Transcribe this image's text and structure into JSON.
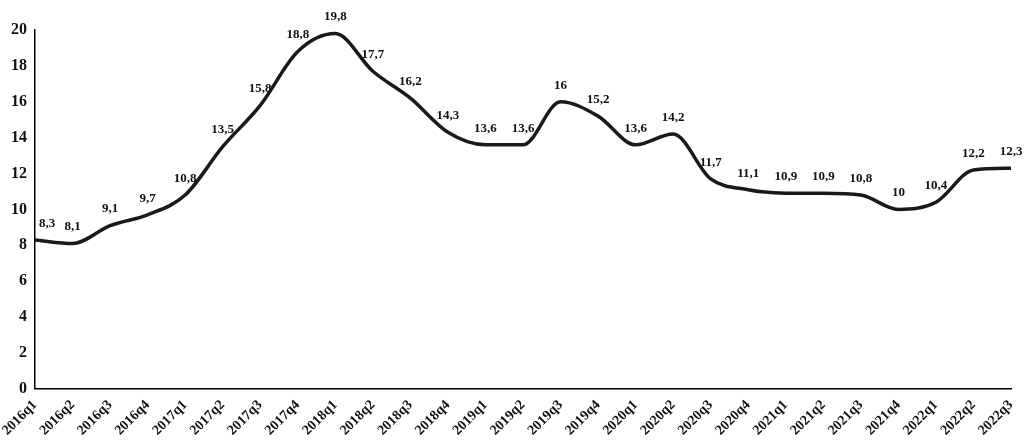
{
  "chart_data": {
    "type": "line",
    "categories": [
      "2016q1",
      "2016q2",
      "2016q3",
      "2016q4",
      "2017q1",
      "2017q2",
      "2017q3",
      "2017q4",
      "2018q1",
      "2018q2",
      "2018q3",
      "2018q4",
      "2019q1",
      "2019q2",
      "2019q3",
      "2019q4",
      "2020q1",
      "2020q2",
      "2020q3",
      "2020q4",
      "2021q1",
      "2021q2",
      "2021q3",
      "2021q4",
      "2022q1",
      "2022q2",
      "2022q3"
    ],
    "values": [
      8.3,
      8.1,
      9.1,
      9.7,
      10.8,
      13.5,
      15.8,
      18.8,
      19.8,
      17.7,
      16.2,
      14.3,
      13.6,
      13.6,
      16,
      15.2,
      13.6,
      14.2,
      11.7,
      11.1,
      10.9,
      10.9,
      10.8,
      10,
      10.4,
      12.2,
      12.3
    ],
    "value_labels": [
      "8,3",
      "8,1",
      "9,1",
      "9,7",
      "10,8",
      "13,5",
      "15,8",
      "18,8",
      "19,8",
      "17,7",
      "16,2",
      "14,3",
      "13,6",
      "13,6",
      "16",
      "15,2",
      "13,6",
      "14,2",
      "11,7",
      "11,1",
      "10,9",
      "10,9",
      "10,8",
      "10",
      "10,4",
      "12,2",
      "12,3"
    ],
    "color": "#1a1a1a",
    "ylim": [
      0,
      20
    ],
    "yticks": [
      0,
      2,
      4,
      6,
      8,
      10,
      12,
      14,
      16,
      18,
      20
    ],
    "grid": false,
    "legend": false,
    "marker": "none",
    "line_style": "solid"
  }
}
